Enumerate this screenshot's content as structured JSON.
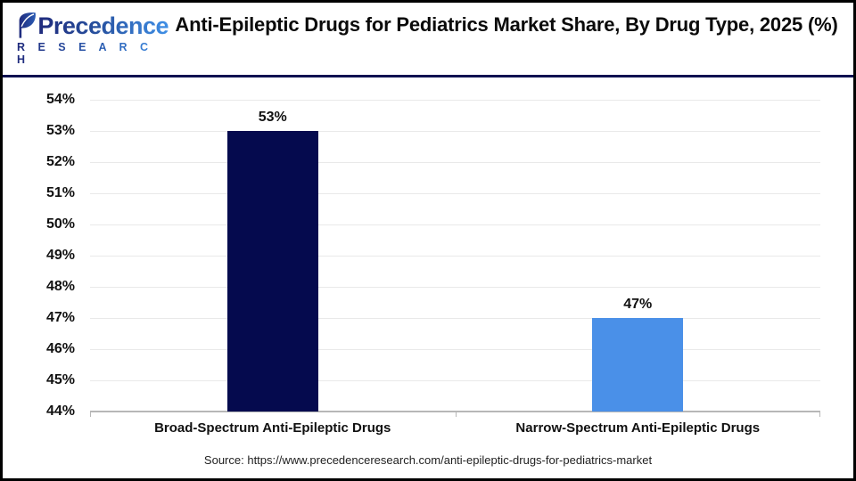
{
  "header": {
    "logo": {
      "word": "Precedence",
      "sub": "R E S E A R C H"
    },
    "title": "Anti-Epileptic Drugs for Pediatrics Market Share, By Drug Type, 2025 (%)"
  },
  "chart_data": {
    "type": "bar",
    "title": "Anti-Epileptic Drugs for Pediatrics Market Share, By Drug Type, 2025 (%)",
    "categories": [
      "Broad-Spectrum Anti-Epileptic Drugs",
      "Narrow-Spectrum Anti-Epileptic Drugs"
    ],
    "values": [
      53,
      47
    ],
    "value_labels": [
      "53%",
      "47%"
    ],
    "bar_colors": [
      "#050a4e",
      "#4a90e8"
    ],
    "xlabel": "",
    "ylabel": "",
    "ylim": [
      44,
      54
    ],
    "ytick_step": 1,
    "ytick_labels": [
      "44%",
      "45%",
      "46%",
      "47%",
      "48%",
      "49%",
      "50%",
      "51%",
      "52%",
      "53%",
      "54%"
    ],
    "grid": "horizontal",
    "legend": "none"
  },
  "colors": {
    "bar_dark_navy": "#050a4e",
    "bar_light_blue": "#4a90e8",
    "header_rule": "#0d1150",
    "gridline": "#e9e9e9",
    "axis_line": "#b7b7b7"
  },
  "footer": {
    "source": "Source: https://www.precedenceresearch.com/anti-epileptic-drugs-for-pediatrics-market"
  }
}
